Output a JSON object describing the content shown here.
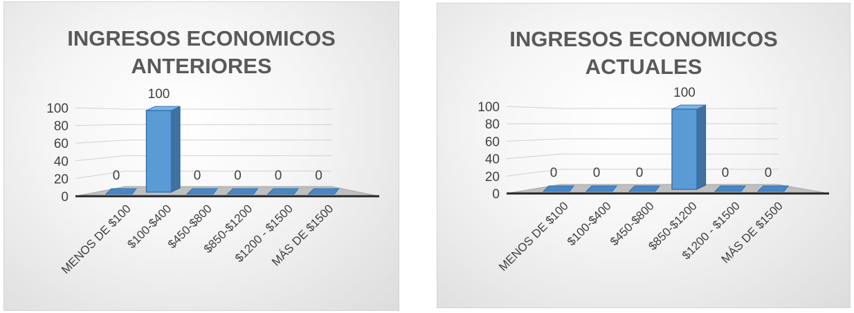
{
  "chart_data": [
    {
      "type": "bar",
      "title_lines": [
        "INGRESOS ECONOMICOS",
        "ANTERIORES"
      ],
      "categories": [
        "MENOS DE $100",
        "$100-$400",
        "$450-$800",
        "$850-$1200",
        "$1200 - $1500",
        "MÁS DE $1500"
      ],
      "values": [
        0,
        100,
        0,
        0,
        0,
        0
      ],
      "yticks": [
        0,
        20,
        40,
        60,
        80,
        100
      ],
      "ylim": [
        0,
        100
      ],
      "three_d": true,
      "grid": true,
      "bar_color": "#5b9bd5",
      "legend": "none"
    },
    {
      "type": "bar",
      "title_lines": [
        "INGRESOS ECONOMICOS",
        "ACTUALES"
      ],
      "categories": [
        "MENOS DE $100",
        "$100-$400",
        "$450-$800",
        "$850-$1200",
        "$1200 - $1500",
        "MÁS DE $1500"
      ],
      "values": [
        0,
        0,
        0,
        100,
        0,
        0
      ],
      "yticks": [
        0,
        20,
        40,
        60,
        80,
        100
      ],
      "ylim": [
        0,
        100
      ],
      "three_d": true,
      "grid": true,
      "bar_color": "#5b9bd5",
      "legend": "none"
    }
  ]
}
